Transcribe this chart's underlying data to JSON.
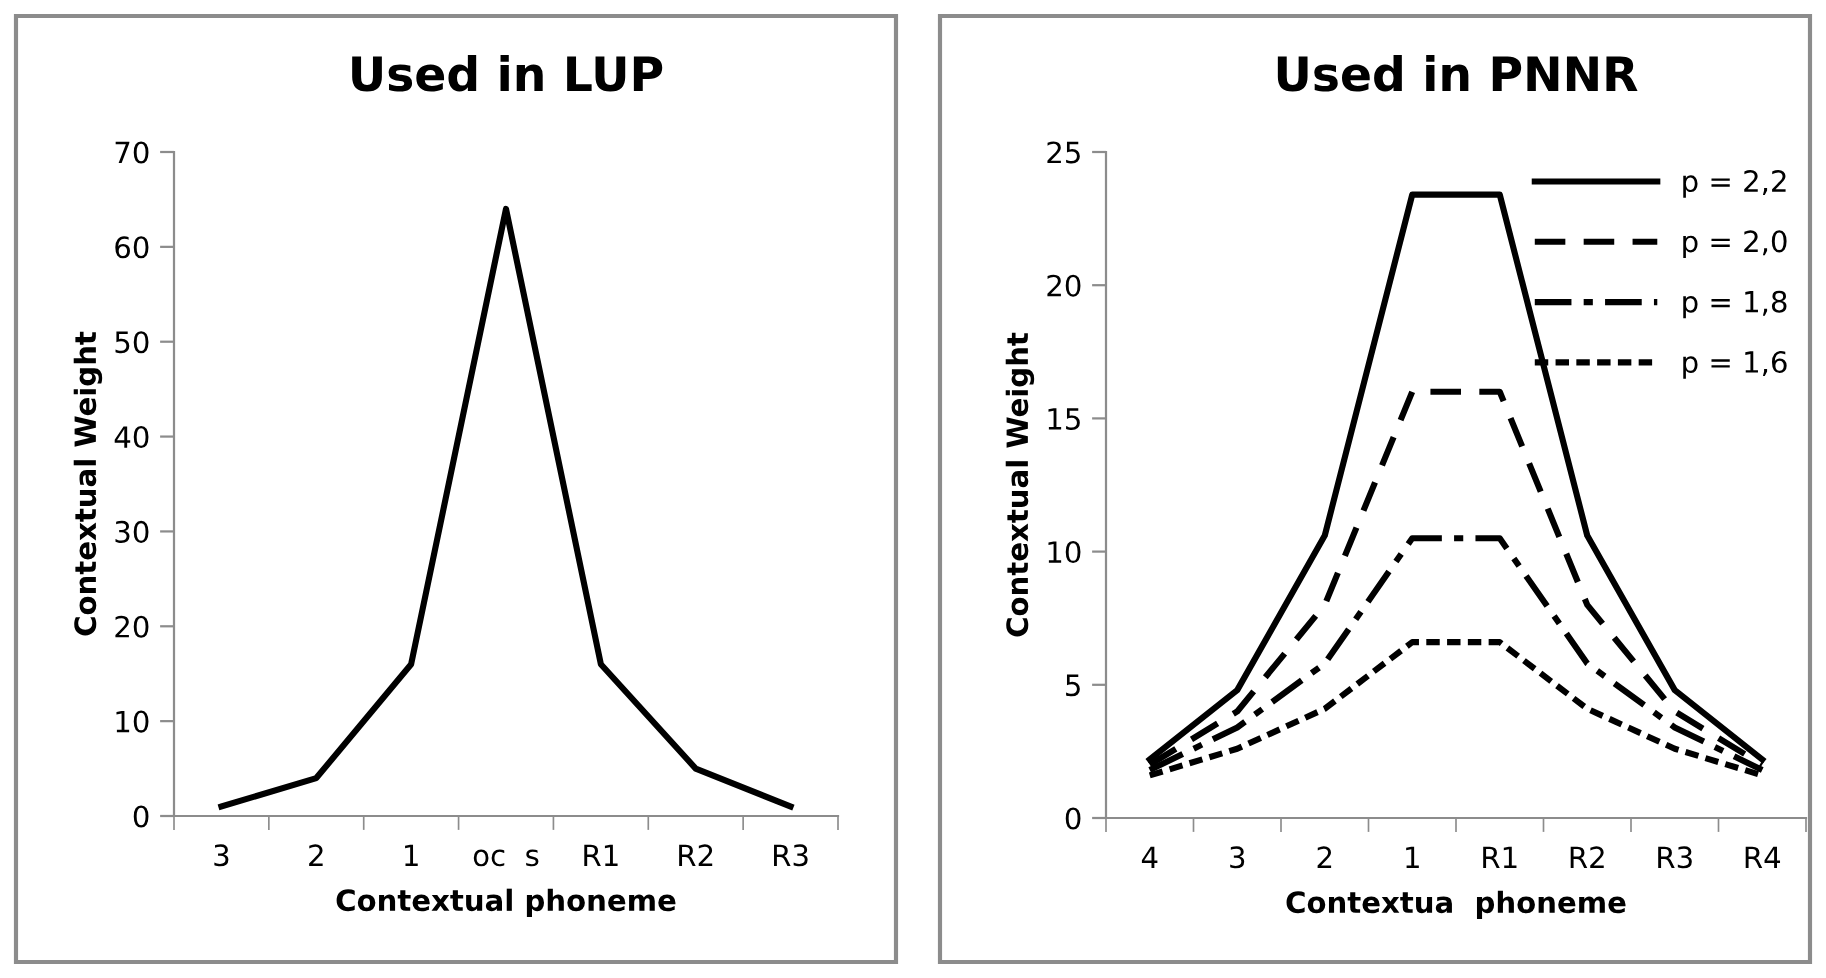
{
  "chart_data": [
    {
      "type": "line",
      "title": "Used in LUP",
      "xlabel": "Contextual phoneme",
      "ylabel": "Contextual Weight",
      "categories": [
        "3",
        "2",
        "1",
        "oc  s",
        "R1",
        "R2",
        "R3"
      ],
      "series": [
        {
          "color": "#000000",
          "line_style": "solid",
          "values": [
            1,
            4,
            16,
            64,
            16,
            5,
            1
          ]
        }
      ],
      "ylim": [
        0,
        70
      ],
      "yticks": [
        0,
        10,
        20,
        30,
        40,
        50,
        60,
        70
      ],
      "grid": false,
      "legend": false
    },
    {
      "type": "line",
      "title": "Used in PNNR",
      "xlabel": "Contextua  phoneme",
      "ylabel": "Contextual Weight",
      "categories": [
        "4",
        "3",
        "2",
        "1",
        "R1",
        "R2",
        "R3",
        "R4"
      ],
      "series": [
        {
          "name": "p = 2,2",
          "color": "#000000",
          "line_style": "solid",
          "values": [
            2.2,
            4.8,
            10.6,
            23.4,
            23.4,
            10.6,
            4.8,
            2.2
          ]
        },
        {
          "name": "p = 2,0",
          "color": "#000000",
          "line_style": "dashed",
          "values": [
            2,
            4,
            8,
            16,
            16,
            8,
            4,
            2
          ]
        },
        {
          "name": "p = 1,8",
          "color": "#000000",
          "line_style": "dashdot",
          "values": [
            1.8,
            3.4,
            5.8,
            10.5,
            10.5,
            5.8,
            3.4,
            1.8
          ]
        },
        {
          "name": "p = 1,6",
          "color": "#000000",
          "line_style": "dotted",
          "values": [
            1.6,
            2.6,
            4.1,
            6.6,
            6.6,
            4.1,
            2.6,
            1.6
          ]
        }
      ],
      "ylim": [
        0,
        25
      ],
      "yticks": [
        0,
        5,
        10,
        15,
        20,
        25
      ],
      "grid": false,
      "legend": "top right"
    }
  ]
}
